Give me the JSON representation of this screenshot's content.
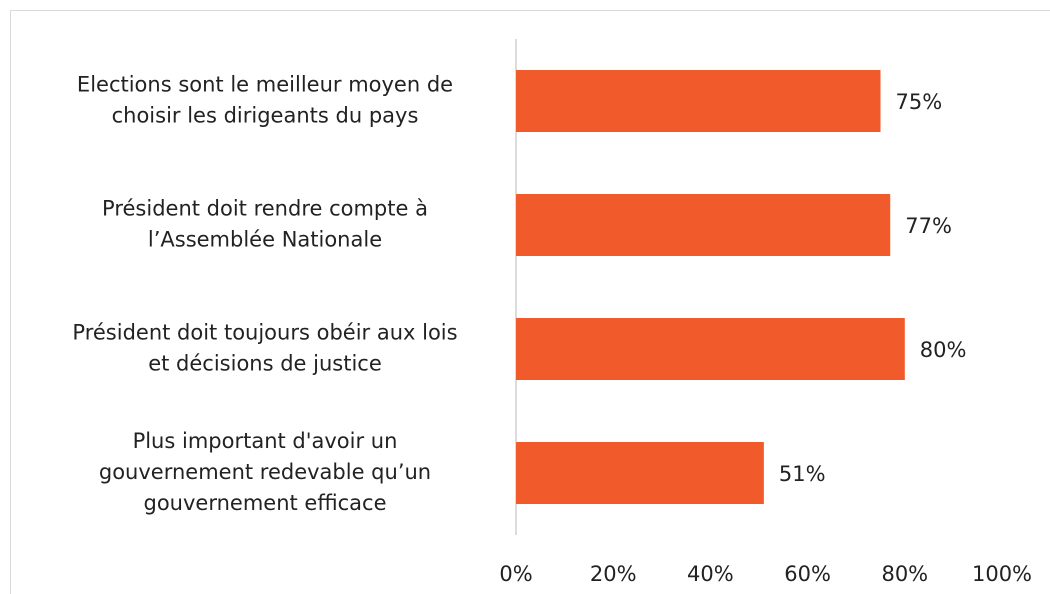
{
  "chart_data": {
    "type": "bar",
    "orientation": "horizontal",
    "categories": [
      "Elections sont le meilleur moyen de\nchoisir les dirigeants du pays",
      "Président doit rendre compte à\nl’Assemblée Nationale",
      "Président doit toujours obéir aux lois\net décisions de justice",
      "Plus important d'avoir un\ngouvernement redevable qu’un\ngouvernement efficace"
    ],
    "values": [
      75,
      77,
      80,
      51
    ],
    "value_labels": [
      "75%",
      "77%",
      "80%",
      "51%"
    ],
    "color": "#f15a2b",
    "xlim": [
      0,
      100
    ],
    "xticks": [
      {
        "value": 0,
        "label": "0%"
      },
      {
        "value": 20,
        "label": "20%"
      },
      {
        "value": 40,
        "label": "40%"
      },
      {
        "value": 60,
        "label": "60%"
      },
      {
        "value": 80,
        "label": "80%"
      },
      {
        "value": 100,
        "label": "100%"
      }
    ],
    "grid": false
  }
}
